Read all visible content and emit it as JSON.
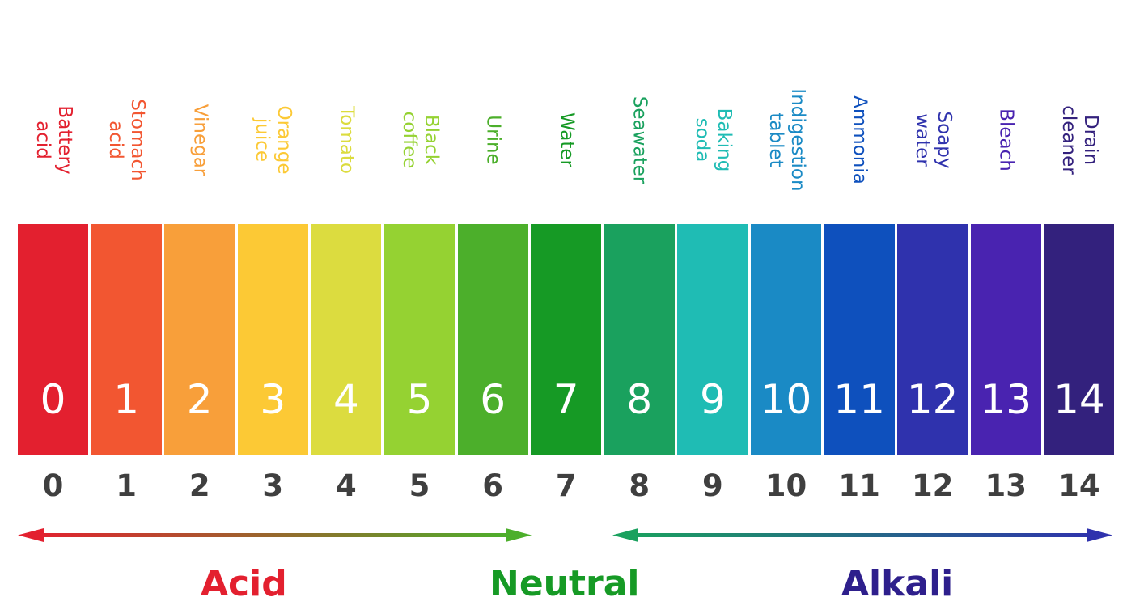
{
  "chart_data": {
    "type": "ph-scale",
    "levels": [
      {
        "value": "0",
        "substance": "Battery acid",
        "color": "#e3202f"
      },
      {
        "value": "1",
        "substance": "Stomach acid",
        "color": "#f25631"
      },
      {
        "value": "2",
        "substance": "Vinegar",
        "color": "#f89f3a"
      },
      {
        "value": "3",
        "substance": "Orange juice",
        "color": "#fcc935"
      },
      {
        "value": "4",
        "substance": "Tomato",
        "color": "#dcdc3f"
      },
      {
        "value": "5",
        "substance": "Black coffee",
        "color": "#95d232"
      },
      {
        "value": "6",
        "substance": "Urine",
        "color": "#4caf2b"
      },
      {
        "value": "7",
        "substance": "Water",
        "color": "#169a25"
      },
      {
        "value": "8",
        "substance": "Seawater",
        "color": "#1aa15e"
      },
      {
        "value": "9",
        "substance": "Baking soda",
        "color": "#1fbcb4"
      },
      {
        "value": "10",
        "substance": "Indigestion\ntablet",
        "color": "#1a8ac5"
      },
      {
        "value": "11",
        "substance": "Ammonia",
        "color": "#0e50bd"
      },
      {
        "value": "12",
        "substance": "Soapy water",
        "color": "#2f32ad"
      },
      {
        "value": "13",
        "substance": "Bleach",
        "color": "#4923b0"
      },
      {
        "value": "14",
        "substance": "Drain cleaner",
        "color": "#33217d"
      }
    ]
  },
  "groups": {
    "acid": {
      "label": "Acid",
      "color": "#e3202f"
    },
    "neutral": {
      "label": "Neutral",
      "color": "#169a25"
    },
    "alkali": {
      "label": "Alkali",
      "color": "#2e1f8c"
    }
  }
}
